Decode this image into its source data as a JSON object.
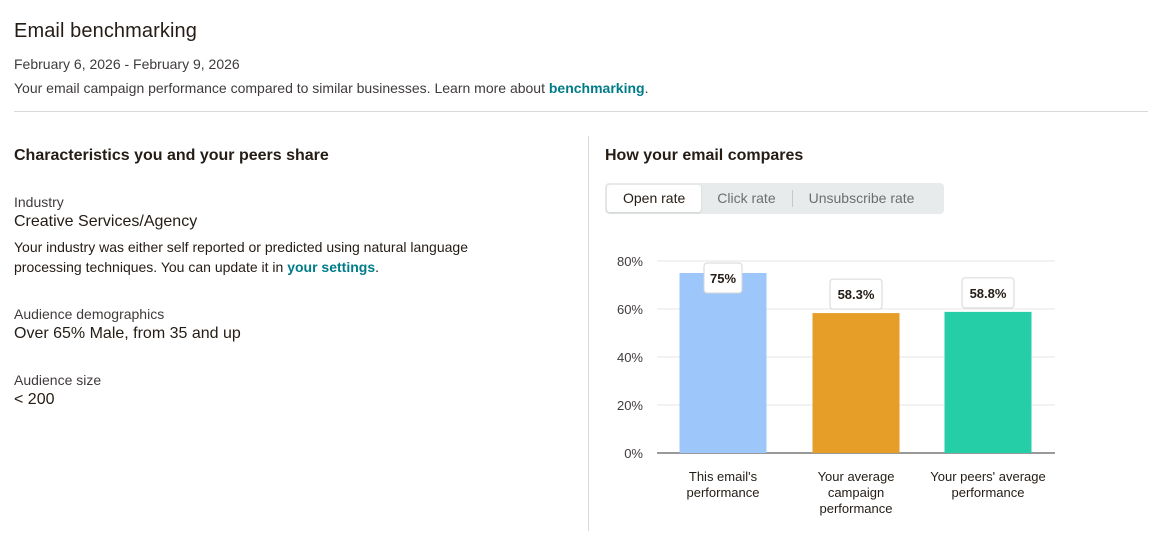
{
  "header": {
    "title": "Email benchmarking",
    "date_range": "February 6, 2026 - February 9, 2026",
    "intro_text": "Your email campaign performance compared to similar businesses. Learn more about ",
    "intro_link": "benchmarking",
    "intro_end": "."
  },
  "characteristics": {
    "title": "Characteristics you and your peers share",
    "industry": {
      "label": "Industry",
      "value": "Creative Services/Agency",
      "desc": "Your industry was either self reported or predicted using natural language processing techniques. You can update it in ",
      "link": "your settings",
      "desc_end": "."
    },
    "demographics": {
      "label": "Audience demographics",
      "value": "Over 65% Male, from 35 and up"
    },
    "audience_size": {
      "label": "Audience size",
      "value": "< 200"
    }
  },
  "compare": {
    "title": "How your email compares",
    "tabs": [
      {
        "label": "Open rate",
        "active": true
      },
      {
        "label": "Click rate",
        "active": false
      },
      {
        "label": "Unsubscribe rate",
        "active": false
      }
    ]
  },
  "chart_data": {
    "type": "bar",
    "categories": [
      "This email's performance",
      "Your average campaign performance",
      "Your peers' average performance"
    ],
    "category_lines": [
      [
        "This email's",
        "performance"
      ],
      [
        "Your average",
        "campaign",
        "performance"
      ],
      [
        "Your peers' average",
        "performance"
      ]
    ],
    "values": [
      75,
      58.3,
      58.8
    ],
    "value_labels": [
      "75%",
      "58.3%",
      "58.8%"
    ],
    "colors": [
      "#9dc7fa",
      "#e69e29",
      "#26cea8"
    ],
    "yticks": [
      0,
      20,
      40,
      60,
      80
    ],
    "ytick_labels": [
      "0%",
      "20%",
      "40%",
      "60%",
      "80%"
    ],
    "ylim": [
      0,
      80
    ],
    "grid": true
  }
}
